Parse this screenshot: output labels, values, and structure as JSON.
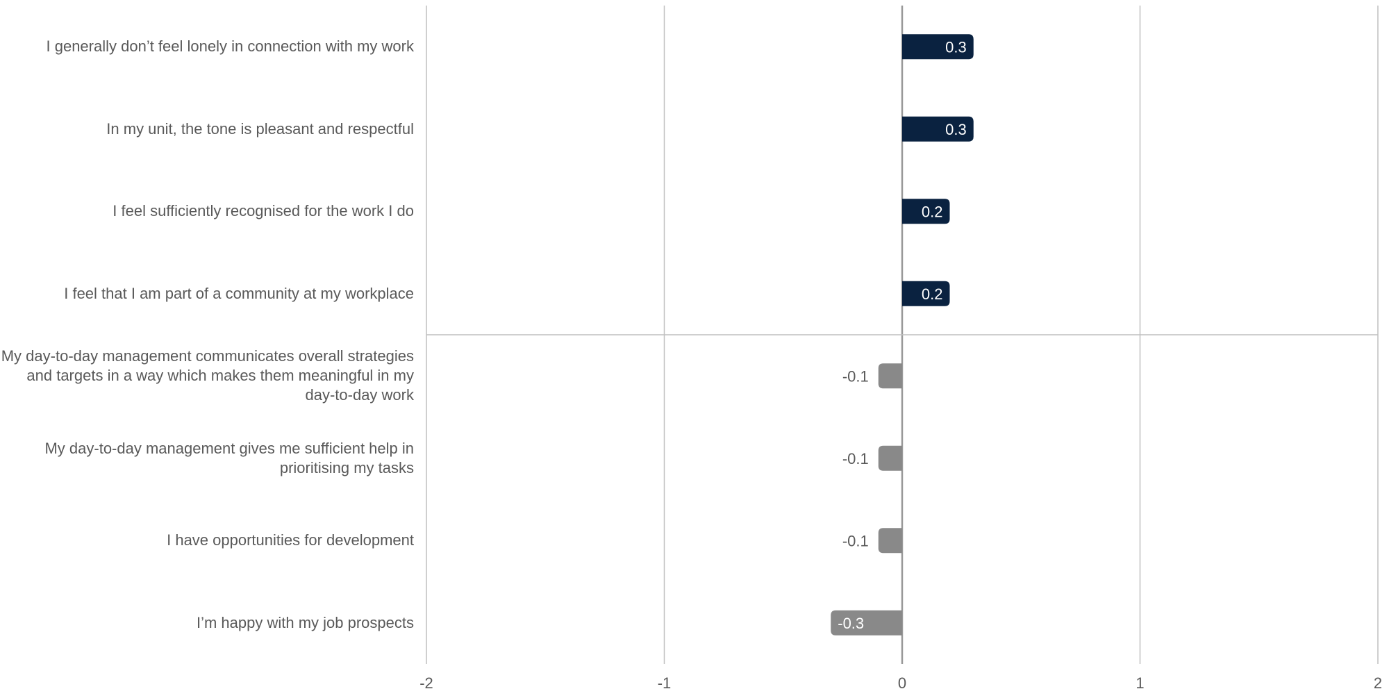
{
  "chart_data": {
    "type": "bar",
    "orientation": "horizontal",
    "title": "",
    "xlabel": "",
    "ylabel": "",
    "categories": [
      "I generally don’t feel lonely in connection with my work",
      "In my unit, the tone is pleasant and respectful",
      "I feel sufficiently recognised for the work I do",
      "I feel that I am part of a community at my workplace",
      "My day-to-day management communicates overall strategies and targets in a way which makes them meaningful in my day-to-day work",
      "My day-to-day management gives me sufficient help in prioritising my tasks",
      "I have opportunities for development",
      "I’m happy with my job prospects"
    ],
    "values": [
      0.3,
      0.3,
      0.2,
      0.2,
      -0.1,
      -0.1,
      -0.1,
      -0.3
    ],
    "data_labels": [
      "0.3",
      "0.3",
      "0.2",
      "0.2",
      "-0.1",
      "-0.1",
      "-0.1",
      "-0.3"
    ],
    "xlim": [
      -2,
      2
    ],
    "x_ticks": [
      "-2",
      "-1",
      "0",
      "1",
      "2"
    ],
    "grid": true,
    "legend": "none",
    "colors": {
      "positive": "#0a2240",
      "negative": "#898989",
      "grid": "#bfbfbf",
      "text": "#595959"
    }
  }
}
